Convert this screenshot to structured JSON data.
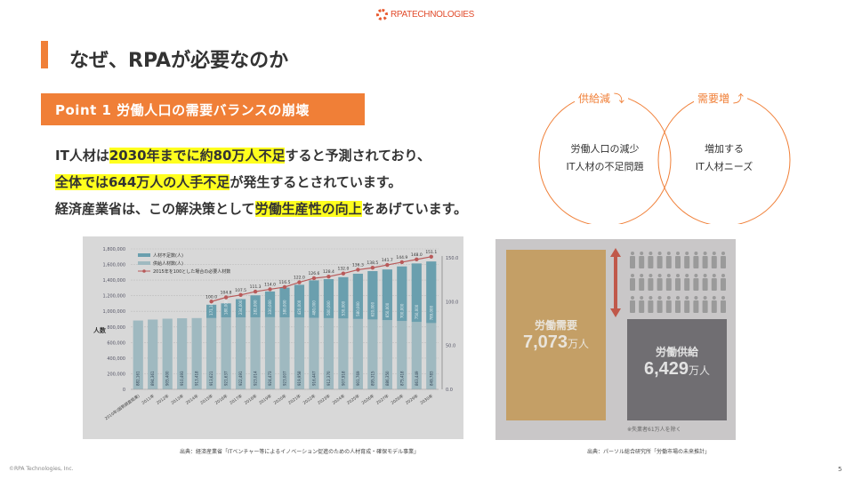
{
  "logo": {
    "text": "RPATECHNOLOGIES",
    "icon": "gear-ring-icon"
  },
  "title": "なぜ、RPAが必要なのか",
  "point": "Point 1 労働人口の需要バランスの崩壊",
  "body": {
    "line1": [
      {
        "text": "IT人材は",
        "hl": false
      },
      {
        "text": "2030年までに約80万人不足",
        "hl": true
      },
      {
        "text": "すると予測されており、",
        "hl": false
      }
    ],
    "line2": [
      {
        "text": "全体では644万人の人手不足",
        "hl": true
      },
      {
        "text": "が発生するとされています。",
        "hl": false
      }
    ],
    "line3": [
      {
        "text": "経済産業省は、この解決策として",
        "hl": false
      },
      {
        "text": "労働生産性の向上",
        "hl": true
      },
      {
        "text": "をあげています。",
        "hl": false
      }
    ]
  },
  "venn": {
    "left_label": "供給減",
    "left_lines": [
      "労働人口の減少",
      "IT人材の不足問題"
    ],
    "right_label": "需要増",
    "right_lines": [
      "増加する",
      "IT人材ニーズ"
    ]
  },
  "chart_data": [
    {
      "type": "bar",
      "title": "",
      "ylabel": "人数",
      "ylim": [
        0,
        1800000
      ],
      "y2lim": [
        0,
        150
      ],
      "yticks": [
        "0",
        "200,000",
        "400,000",
        "600,000",
        "800,000",
        "1,000,000",
        "1,200,000",
        "1,400,000",
        "1,600,000",
        "1,800,000"
      ],
      "y2ticks": [
        "0.0",
        "50.0",
        "100.0",
        "150.0"
      ],
      "legend": [
        "人材不足数(人)",
        "供給人材数(人)",
        "2015年を100とした場合の必要人材数"
      ],
      "legend_position": "top-left",
      "categories": [
        "2010年(国勢調査結果)",
        "2011年",
        "2012年",
        "2013年",
        "2014年",
        "2015年",
        "2016年",
        "2017年",
        "2018年",
        "2019年",
        "2020年",
        "2021年",
        "2022年",
        "2023年",
        "2024年",
        "2025年",
        "2026年",
        "2027年",
        "2028年",
        "2029年",
        "2030年"
      ],
      "series": [
        {
          "name": "供給人材数(人)",
          "values": [
            882161,
            894361,
            905400,
            910493,
            913418,
            913621,
            921637,
            922491,
            923014,
            924473,
            923007,
            919958,
            916447,
            912370,
            907918,
            901769,
            895315,
            886350,
            875418,
            863449,
            849783
          ]
        },
        {
          "name": "人材不足数(人)",
          "values": [
            0,
            0,
            0,
            0,
            0,
            171100,
            180000,
            234000,
            282000,
            330000,
            380000,
            420000,
            480000,
            500000,
            530000,
            580000,
            620000,
            650000,
            700000,
            750000,
            789000
          ]
        },
        {
          "name": "2015年を100とした場合の必要人材数",
          "values": [
            null,
            null,
            null,
            null,
            null,
            100.0,
            104.8,
            107.5,
            111.3,
            114.0,
            116.5,
            122.0,
            126.6,
            128.4,
            132.0,
            136.3,
            138.5,
            141.7,
            144.9,
            148.0,
            151.1
          ]
        }
      ]
    },
    {
      "type": "bar",
      "categories": [
        "労働需要",
        "労働供給"
      ],
      "values": [
        7073,
        6429
      ],
      "unit": "万人",
      "display": [
        "7,073",
        "6,429"
      ],
      "note": "※失業者61万人を除く"
    }
  ],
  "sources": {
    "left": "出典：経済産業省「ITベンチャー等によるイノベーション促進のための人材育成・確保モデル事業」",
    "right": "出典：パーソル総合研究所「労働市場の未来推計」"
  },
  "footer": {
    "copyright": "©RPA Technologies, Inc.",
    "page": "5"
  },
  "colors": {
    "accent": "#f07f37",
    "highlight": "#ffff1e",
    "shortage": "#6a9fae",
    "supply": "#9fb9c0",
    "line": "#b85a5a",
    "demand_block": "#c49f66",
    "supply_block": "#706e72"
  }
}
